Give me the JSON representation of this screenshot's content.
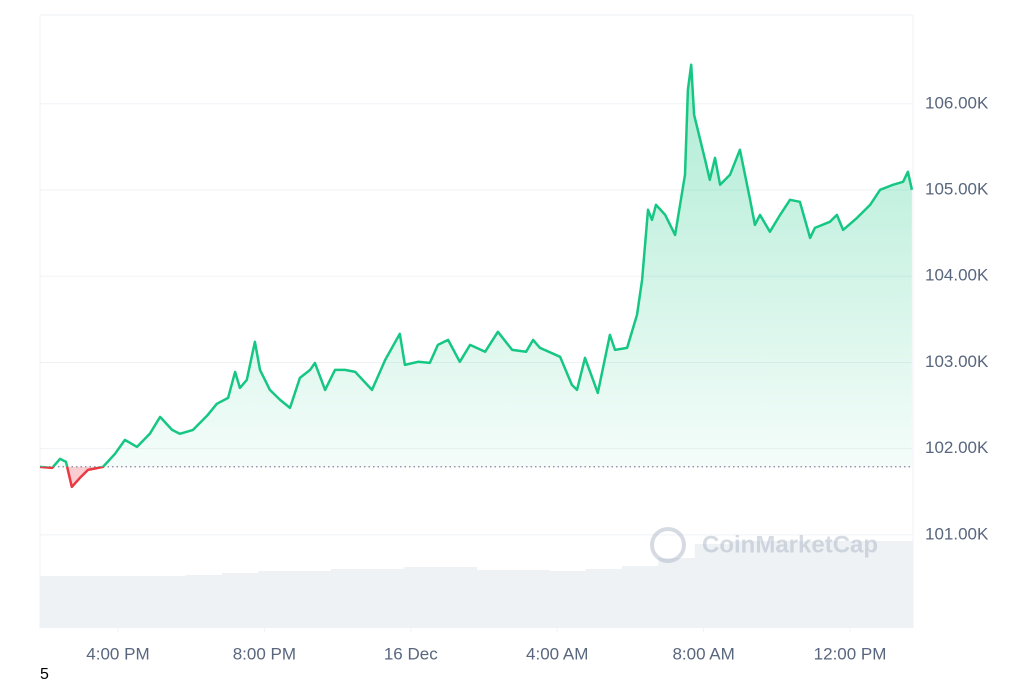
{
  "chart_data": {
    "type": "line",
    "x": [
      13.87,
      14.2,
      14.42,
      14.58,
      14.74,
      14.96,
      15.18,
      15.59,
      15.92,
      16.19,
      16.52,
      16.87,
      17.15,
      17.48,
      17.69,
      18.05,
      18.43,
      18.7,
      19.01,
      19.2,
      19.33,
      19.52,
      19.74,
      19.88,
      20.15,
      20.43,
      20.7,
      20.97,
      21.25,
      21.38,
      21.66,
      21.93,
      22.2,
      22.48,
      22.94,
      23.3,
      23.7,
      23.84,
      24.2,
      24.52,
      24.74,
      25.02,
      25.34,
      25.62,
      26.03,
      26.38,
      26.77,
      27.15,
      27.34,
      27.53,
      28.08,
      28.4,
      28.54,
      28.76,
      29.11,
      29.44,
      29.58,
      29.91,
      30.18,
      30.32,
      30.48,
      30.59,
      30.7,
      30.95,
      31.22,
      31.49,
      31.57,
      31.66,
      31.74,
      32.04,
      32.17,
      32.31,
      32.45,
      32.72,
      32.99,
      33.27,
      33.4,
      33.54,
      33.81,
      34.09,
      34.36,
      34.63,
      34.91,
      35.04,
      35.45,
      35.64,
      35.81,
      36.19,
      36.55,
      36.82,
      37.17,
      37.45,
      37.58,
      37.69
    ],
    "values": [
      101789,
      101777,
      101882,
      101847,
      101557,
      101661,
      101754,
      101789,
      101940,
      102102,
      102021,
      102172,
      102369,
      102218,
      102172,
      102218,
      102380,
      102520,
      102589,
      102891,
      102705,
      102798,
      103239,
      102914,
      102682,
      102566,
      102473,
      102821,
      102914,
      102995,
      102682,
      102914,
      102914,
      102891,
      102682,
      103030,
      103332,
      102972,
      103007,
      102995,
      103204,
      103262,
      103007,
      103204,
      103123,
      103355,
      103146,
      103123,
      103262,
      103169,
      103065,
      102740,
      102682,
      103053,
      102647,
      103320,
      103146,
      103169,
      103552,
      103958,
      104770,
      104654,
      104828,
      104712,
      104480,
      105176,
      106162,
      106452,
      105872,
      105350,
      105118,
      105373,
      105060,
      105176,
      105466,
      104886,
      104596,
      104712,
      104515,
      104712,
      104886,
      104863,
      104445,
      104561,
      104631,
      104712,
      104538,
      104677,
      104828,
      105002,
      105060,
      105095,
      105211,
      105002
    ],
    "baseline": 101790,
    "up_color": "#16c784",
    "down_color": "#ea3943",
    "xlim": [
      13.87,
      37.72
    ],
    "xticks": [
      {
        "value": 16,
        "label": "4:00 PM"
      },
      {
        "value": 20,
        "label": "8:00 PM"
      },
      {
        "value": 24,
        "label": "16 Dec"
      },
      {
        "value": 28,
        "label": "4:00 AM"
      },
      {
        "value": 32,
        "label": "8:00 AM"
      },
      {
        "value": 36,
        "label": "12:00 PM"
      }
    ],
    "ylim": [
      99920,
      107030
    ],
    "yticks": [
      {
        "value": 101000,
        "label": "101.00K"
      },
      {
        "value": 102000,
        "label": "102.00K"
      },
      {
        "value": 103000,
        "label": "103.00K"
      },
      {
        "value": 104000,
        "label": "104.00K"
      },
      {
        "value": 105000,
        "label": "105.00K"
      },
      {
        "value": 106000,
        "label": "106.00K"
      }
    ],
    "grid": true,
    "volume": {
      "color": "#eff2f5",
      "vlim": [
        0,
        100
      ],
      "values": [
        52,
        52,
        52,
        52,
        53,
        55,
        57,
        57,
        59,
        59,
        61,
        61,
        58,
        58,
        57,
        59,
        62,
        70,
        84,
        87,
        87,
        87,
        87,
        87
      ]
    },
    "watermark": "CoinMarketCap",
    "corner_label": "5"
  }
}
